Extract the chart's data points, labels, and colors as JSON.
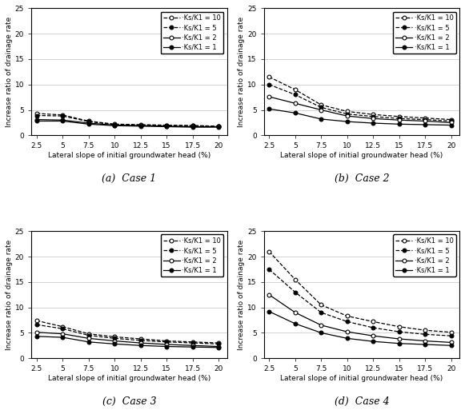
{
  "x": [
    2.5,
    5,
    7.5,
    10,
    12.5,
    15,
    17.5,
    20
  ],
  "cases": {
    "Case 1": {
      "Ks/K1 = 10": [
        4.3,
        4.0,
        2.8,
        2.2,
        2.1,
        2.0,
        1.9,
        1.8
      ],
      "Ks/K1 = 5": [
        3.9,
        3.8,
        2.7,
        2.1,
        2.0,
        1.9,
        1.9,
        1.8
      ],
      "Ks/K1 = 2": [
        3.1,
        3.0,
        2.4,
        2.0,
        1.9,
        1.8,
        1.7,
        1.7
      ],
      "Ks/K1 = 1": [
        2.8,
        2.8,
        2.2,
        1.9,
        1.8,
        1.7,
        1.6,
        1.6
      ]
    },
    "Case 2": {
      "Ks/K1 = 10": [
        11.5,
        9.0,
        6.0,
        4.7,
        4.1,
        3.7,
        3.4,
        3.1
      ],
      "Ks/K1 = 5": [
        10.0,
        8.0,
        5.5,
        4.2,
        3.7,
        3.3,
        3.1,
        2.8
      ],
      "Ks/K1 = 2": [
        7.6,
        6.3,
        5.0,
        3.8,
        3.3,
        3.0,
        2.8,
        2.5
      ],
      "Ks/K1 = 1": [
        5.2,
        4.4,
        3.2,
        2.7,
        2.4,
        2.2,
        2.1,
        2.0
      ]
    },
    "Case 3": {
      "Ks/K1 = 10": [
        7.4,
        6.2,
        4.8,
        4.2,
        3.8,
        3.4,
        3.2,
        3.0
      ],
      "Ks/K1 = 5": [
        6.6,
        5.8,
        4.5,
        3.9,
        3.5,
        3.2,
        3.0,
        2.8
      ],
      "Ks/K1 = 2": [
        5.1,
        4.8,
        3.9,
        3.4,
        3.0,
        2.7,
        2.5,
        2.3
      ],
      "Ks/K1 = 1": [
        4.3,
        4.1,
        3.2,
        2.8,
        2.5,
        2.3,
        2.2,
        2.1
      ]
    },
    "Case 4": {
      "Ks/K1 = 10": [
        21.0,
        15.5,
        10.5,
        8.3,
        7.2,
        6.2,
        5.5,
        5.1
      ],
      "Ks/K1 = 5": [
        17.5,
        13.0,
        9.0,
        7.2,
        6.0,
        5.2,
        4.7,
        4.4
      ],
      "Ks/K1 = 2": [
        12.5,
        9.0,
        6.5,
        5.2,
        4.4,
        3.8,
        3.4,
        3.1
      ],
      "Ks/K1 = 1": [
        9.2,
        6.8,
        5.0,
        3.9,
        3.3,
        2.9,
        2.7,
        2.5
      ]
    }
  },
  "subtitles": [
    "(a)  Case 1",
    "(b)  Case 2",
    "(c)  Case 3",
    "(d)  Case 4"
  ],
  "ylabel": "Increase ratio of drainage rate",
  "xlabel": "Lateral slope of initial groundwater head (%)",
  "ylim": [
    0,
    25
  ],
  "yticks": [
    0,
    5,
    10,
    15,
    20,
    25
  ],
  "xticks": [
    2.5,
    5,
    7.5,
    10,
    12.5,
    15,
    17.5,
    20
  ],
  "legend_labels": [
    "Ks/K1 = 10",
    "Ks/K1 = 5",
    "Ks/K1 = 2",
    "Ks/K1 = 1"
  ],
  "legend_display": [
    "·Ks/K1 = 10",
    "·Ks/K1 = 5",
    "·Ks/K1 = 2",
    "·Ks/K1 = 1"
  ],
  "line_styles": [
    "--",
    "--",
    "-",
    "-"
  ],
  "marker_fill": [
    "white",
    "black",
    "white",
    "black"
  ],
  "line_color": "black"
}
